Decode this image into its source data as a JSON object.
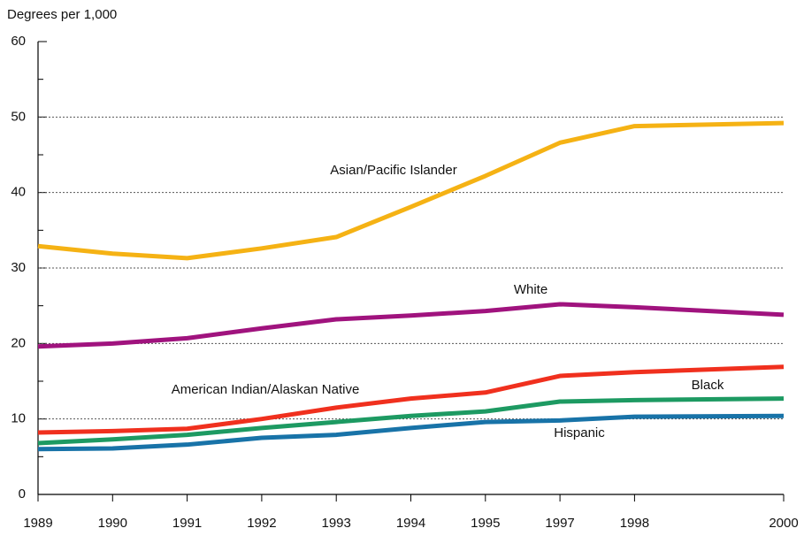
{
  "chart_data": {
    "type": "line",
    "y_label": "Degrees per 1,000",
    "categories": [
      "1989",
      "1990",
      "1991",
      "1992",
      "1993",
      "1994",
      "1995",
      "1997",
      "1998",
      "2000"
    ],
    "series": [
      {
        "name": "Asian/Pacific Islander",
        "color": "#f5b214",
        "values": [
          32.9,
          31.9,
          31.3,
          32.6,
          34.1,
          38.1,
          42.2,
          46.6,
          48.8,
          49.2
        ]
      },
      {
        "name": "White",
        "color": "#a0137e",
        "values": [
          19.6,
          20.0,
          20.7,
          22.0,
          23.2,
          23.7,
          24.3,
          25.2,
          24.8,
          23.8
        ]
      },
      {
        "name": "American Indian/Alaskan Native",
        "color": "#f0301e",
        "values": [
          8.2,
          8.4,
          8.7,
          10.0,
          11.5,
          12.7,
          13.5,
          15.7,
          16.2,
          16.9
        ]
      },
      {
        "name": "Black",
        "color": "#1d9a62",
        "values": [
          6.8,
          7.3,
          7.9,
          8.8,
          9.6,
          10.4,
          11.0,
          12.3,
          12.5,
          12.7
        ]
      },
      {
        "name": "Hispanic",
        "color": "#1873a8",
        "values": [
          6.0,
          6.1,
          6.6,
          7.5,
          7.9,
          8.8,
          9.6,
          9.8,
          10.3,
          10.4
        ]
      }
    ],
    "ylim": [
      0,
      60
    ],
    "yticks": [
      0,
      10,
      20,
      30,
      40,
      50,
      60
    ],
    "grid": true
  }
}
